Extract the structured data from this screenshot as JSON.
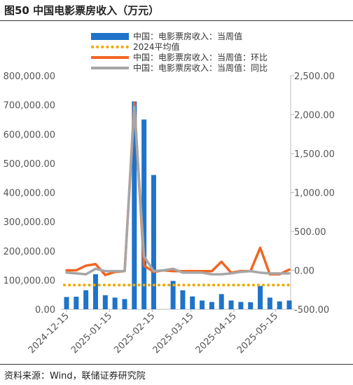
{
  "figure": {
    "title": "图50 中国电影票房收入（万元）",
    "source": "资料来源：Wind，联储证券研究院"
  },
  "colors": {
    "bar": "#1f73c8",
    "avg": "#f0a800",
    "mom": "#f26522",
    "yoy": "#a6a6a6"
  },
  "chart_data": {
    "type": "bar",
    "x": [
      "2024-12-15",
      "2024-12-22",
      "2024-12-29",
      "2025-01-05",
      "2025-01-12",
      "2025-01-19",
      "2025-01-26",
      "2025-02-02",
      "2025-02-09",
      "2025-02-16",
      "2025-02-23",
      "2025-03-02",
      "2025-03-09",
      "2025-03-16",
      "2025-03-23",
      "2025-03-30",
      "2025-04-06",
      "2025-04-13",
      "2025-04-20",
      "2025-04-27",
      "2025-05-04",
      "2025-05-11",
      "2025-05-18",
      "2025-05-25"
    ],
    "x_tick_labels": [
      "2024-12-15",
      "2025-01-15",
      "2025-02-15",
      "2025-03-15",
      "2025-04-15",
      "2025-05-15"
    ],
    "series": [
      {
        "name": "中国：电影票房收入：当周值",
        "type": "bar",
        "axis": "left",
        "values": [
          42000,
          43000,
          65000,
          120000,
          48000,
          40000,
          35000,
          712000,
          650000,
          460000,
          0,
          97000,
          65000,
          44000,
          30000,
          25000,
          52000,
          30000,
          25000,
          24000,
          80000,
          40000,
          27000,
          30000
        ]
      },
      {
        "name": "2024平均值",
        "type": "line",
        "style": "dotted",
        "axis": "left",
        "value": 83000
      },
      {
        "name": "中国：电影票房收入：当周值：环比",
        "type": "line",
        "axis": "right",
        "values": [
          0,
          0,
          60,
          80,
          -60,
          -20,
          -10,
          2150,
          60,
          -20,
          0,
          -10,
          -10,
          -10,
          -10,
          -10,
          110,
          -30,
          -10,
          -10,
          290,
          -50,
          -50,
          10
        ]
      },
      {
        "name": "中国：电影票房收入：当周值：同比",
        "type": "line",
        "axis": "right",
        "values": [
          -30,
          -40,
          -50,
          20,
          -10,
          -10,
          -10,
          2100,
          180,
          -10,
          0,
          20,
          -30,
          -30,
          -30,
          -50,
          -50,
          -40,
          -20,
          -10,
          -30,
          -40,
          -40,
          -40
        ]
      }
    ],
    "y_left": {
      "ylim": [
        0,
        800000
      ],
      "ticks": [
        "0.00",
        "100,000.00",
        "200,000.00",
        "300,000.00",
        "400,000.00",
        "500,000.00",
        "600,000.00",
        "700,000.00",
        "800,000.00"
      ]
    },
    "y_right": {
      "ylim": [
        -500,
        2500
      ],
      "ticks": [
        "-500.00",
        "0.00",
        "500.00",
        "1,000.00",
        "1,500.00",
        "2,000.00",
        "2,500.00"
      ]
    },
    "legend": "top-center",
    "grid": false
  }
}
